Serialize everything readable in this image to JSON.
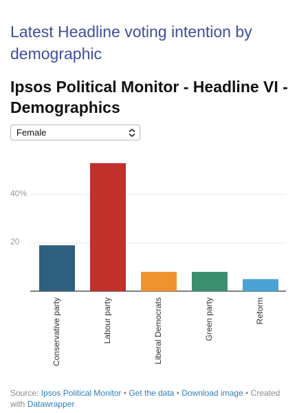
{
  "header": {
    "title": "Latest Headline voting intention by demographic"
  },
  "chart_data": {
    "type": "bar",
    "title": "Ipsos Political Monitor - Headline VI - Demographics",
    "filter": "Female",
    "categories": [
      "Conservative party",
      "Labour party",
      "Liberal Democrats",
      "Green party",
      "Reform"
    ],
    "values": [
      19,
      53,
      8,
      8,
      5
    ],
    "colors": [
      "#2e5f7f",
      "#c0312b",
      "#ef9331",
      "#3a8f6f",
      "#4aa3d4"
    ],
    "ylim": [
      0,
      55
    ],
    "yticks": [
      20,
      {
        "value": 40,
        "label": "40%"
      }
    ],
    "grid": true
  },
  "footer": {
    "source_label": "Source:",
    "source": "Ipsos Political Monitor",
    "separator": "•",
    "get_data": "Get the data",
    "download": "Download image",
    "created": "Created with",
    "tool": "Datawrapper"
  }
}
